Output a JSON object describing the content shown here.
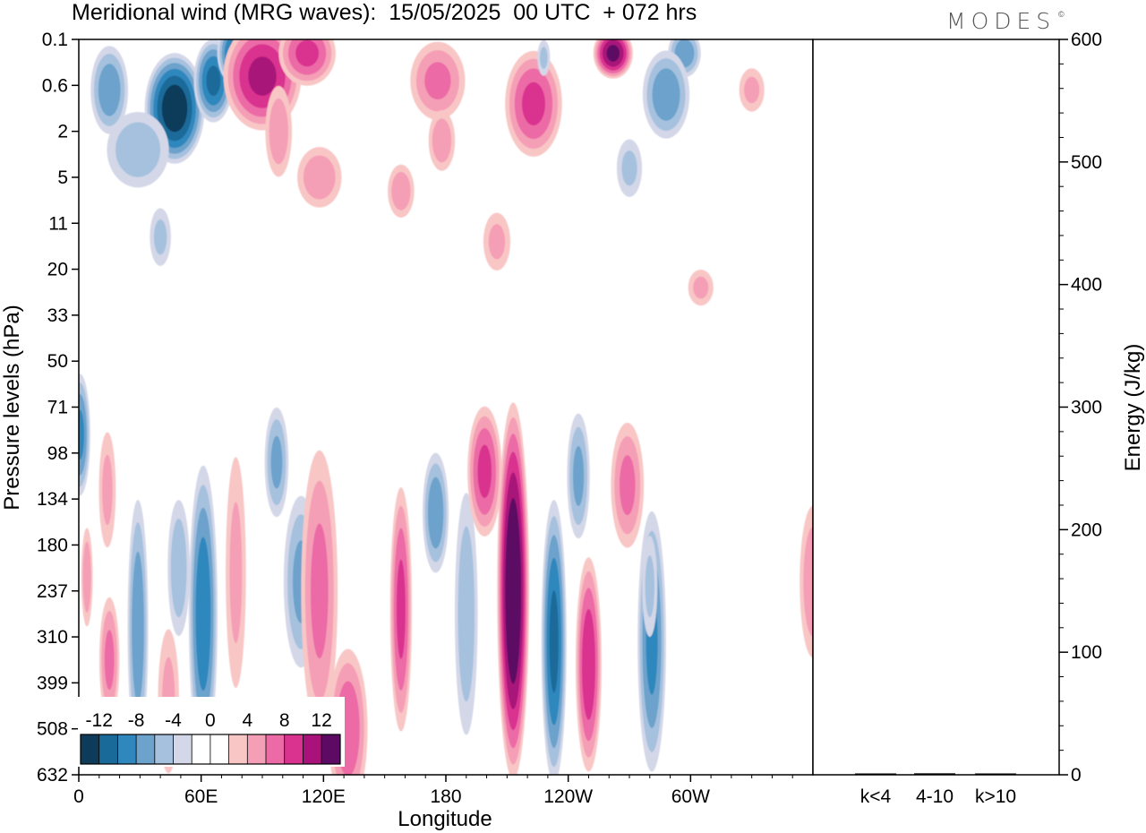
{
  "header": {
    "title": "Meridional wind (MRG waves):  15/05/2025  00 UTC  + 072 hrs",
    "brand": "MODES",
    "brand_mark": "©"
  },
  "chart_data": [
    {
      "type": "heatmap",
      "title": "Meridional wind (MRG waves):  15/05/2025  00 UTC  + 072 hrs",
      "xlabel": "Longitude",
      "ylabel": "Pressure levels (hPa)",
      "x_ticks": [
        "0",
        "60E",
        "120E",
        "180",
        "120W",
        "60W"
      ],
      "y_ticks": [
        "0.1",
        "0.6",
        "2",
        "5",
        "11",
        "20",
        "33",
        "50",
        "71",
        "98",
        "134",
        "180",
        "237",
        "310",
        "399",
        "508",
        "632"
      ],
      "colorbar": {
        "labels": [
          "-12",
          "-8",
          "-4",
          "0",
          "4",
          "8",
          "12"
        ],
        "colors": [
          "#0e3b5a",
          "#1a6a99",
          "#2f87bd",
          "#6ca2cc",
          "#a6c1de",
          "#d3d7e8",
          "#ffffff",
          "#ffffff",
          "#f9c6c6",
          "#f59fb6",
          "#ec6ba6",
          "#d9338f",
          "#a8127a",
          "#5c0a63"
        ]
      },
      "blobs": [
        {
          "lon": 0.5,
          "lev": 8.6,
          "rx": 2.2,
          "ry": 1.5,
          "v": -8
        },
        {
          "lon": 14,
          "lev": 9.8,
          "rx": 2.0,
          "ry": 1.6,
          "v": 4
        },
        {
          "lon": 4,
          "lev": 11.7,
          "rx": 1.3,
          "ry": 1.3,
          "v": 5
        },
        {
          "lon": 15,
          "lev": 13.5,
          "rx": 2.2,
          "ry": 1.6,
          "v": 6
        },
        {
          "lon": 29,
          "lev": 12.8,
          "rx": 2.2,
          "ry": 3.2,
          "v": -7
        },
        {
          "lon": 44,
          "lev": 14.4,
          "rx": 2.5,
          "ry": 2.0,
          "v": 4
        },
        {
          "lon": 49,
          "lev": 11.5,
          "rx": 2.5,
          "ry": 1.8,
          "v": -5
        },
        {
          "lon": 61,
          "lev": 12.5,
          "rx": 3.0,
          "ry": 3.6,
          "v": -9
        },
        {
          "lon": 77,
          "lev": 11.6,
          "rx": 2.4,
          "ry": 3.2,
          "v": 4
        },
        {
          "lon": 109,
          "lev": 11.8,
          "rx": 3.8,
          "ry": 2.2,
          "v": -6
        },
        {
          "lon": 97,
          "lev": 9.2,
          "rx": 2.6,
          "ry": 1.4,
          "v": -6
        },
        {
          "lon": 118,
          "lev": 12.0,
          "rx": 4.0,
          "ry": 3.6,
          "v": 6
        },
        {
          "lon": 132,
          "lev": 15.0,
          "rx": 4.2,
          "ry": 2.0,
          "v": 7
        },
        {
          "lon": 158,
          "lev": 12.4,
          "rx": 2.3,
          "ry": 3.0,
          "v": 8
        },
        {
          "lon": 175,
          "lev": 10.3,
          "rx": 2.8,
          "ry": 1.5,
          "v": -7
        },
        {
          "lon": 190,
          "lev": 12.5,
          "rx": 2.6,
          "ry": 3.2,
          "v": -5
        },
        {
          "lon": 199,
          "lev": 9.4,
          "rx": 3.6,
          "ry": 1.6,
          "v": 8
        },
        {
          "lon": 213,
          "lev": 12.0,
          "rx": 3.2,
          "ry": 4.4,
          "v": 14
        },
        {
          "lon": 233,
          "lev": 13.1,
          "rx": 2.6,
          "ry": 3.4,
          "v": -10
        },
        {
          "lon": 250,
          "lev": 13.6,
          "rx": 2.7,
          "ry": 2.6,
          "v": 9
        },
        {
          "lon": 269,
          "lev": 9.7,
          "rx": 3.6,
          "ry": 1.6,
          "v": 6
        },
        {
          "lon": 245,
          "lev": 9.5,
          "rx": 2.5,
          "ry": 1.6,
          "v": -6
        },
        {
          "lon": 281,
          "lev": 13.1,
          "rx": 3.0,
          "ry": 3.2,
          "v": -8
        },
        {
          "lon": 280,
          "lev": 11.9,
          "rx": 1.8,
          "ry": 1.4,
          "v": -4
        },
        {
          "lon": 360,
          "lev": 11.8,
          "rx": 3.0,
          "ry": 2.0,
          "v": 5
        },
        {
          "lon": 15,
          "lev": 1.1,
          "rx": 4.0,
          "ry": 1.1,
          "v": -7
        },
        {
          "lon": 47,
          "lev": 1.5,
          "rx": 6.0,
          "ry": 1.3,
          "v": -13
        },
        {
          "lon": 66,
          "lev": 0.9,
          "rx": 4.0,
          "ry": 1.0,
          "v": -10
        },
        {
          "lon": 78,
          "lev": 0.3,
          "rx": 4.2,
          "ry": 0.8,
          "v": -11
        },
        {
          "lon": 29,
          "lev": 2.4,
          "rx": 7.0,
          "ry": 1.0,
          "v": -5
        },
        {
          "lon": 90,
          "lev": 0.8,
          "rx": 8.0,
          "ry": 1.3,
          "v": 10
        },
        {
          "lon": 112,
          "lev": 0.3,
          "rx": 6.0,
          "ry": 0.8,
          "v": 8
        },
        {
          "lon": 98,
          "lev": 2.0,
          "rx": 3.0,
          "ry": 1.2,
          "v": 5
        },
        {
          "lon": 118,
          "lev": 3.0,
          "rx": 5.0,
          "ry": 0.8,
          "v": 5
        },
        {
          "lon": 176,
          "lev": 0.9,
          "rx": 6.0,
          "ry": 1.0,
          "v": 6
        },
        {
          "lon": 223,
          "lev": 1.4,
          "rx": 6.0,
          "ry": 1.3,
          "v": 8
        },
        {
          "lon": 262,
          "lev": 0.3,
          "rx": 4.0,
          "ry": 0.6,
          "v": 12
        },
        {
          "lon": 297,
          "lev": 0.3,
          "rx": 3.5,
          "ry": 0.6,
          "v": -7
        },
        {
          "lon": 288,
          "lev": 1.2,
          "rx": 5.0,
          "ry": 1.1,
          "v": -7
        },
        {
          "lon": 228,
          "lev": 0.4,
          "rx": 1.5,
          "ry": 0.5,
          "v": -4
        },
        {
          "lon": 178,
          "lev": 2.2,
          "rx": 3.0,
          "ry": 0.8,
          "v": 5
        },
        {
          "lon": 158,
          "lev": 3.3,
          "rx": 3.0,
          "ry": 0.7,
          "v": 5
        },
        {
          "lon": 270,
          "lev": 2.8,
          "rx": 3.0,
          "ry": 0.8,
          "v": -4
        },
        {
          "lon": 330,
          "lev": 1.1,
          "rx": 3.0,
          "ry": 0.6,
          "v": 4
        },
        {
          "lon": 205,
          "lev": 4.4,
          "rx": 3.2,
          "ry": 0.8,
          "v": 4
        },
        {
          "lon": 40,
          "lev": 4.3,
          "rx": 2.5,
          "ry": 0.8,
          "v": -4
        },
        {
          "lon": 305,
          "lev": 5.4,
          "rx": 3.0,
          "ry": 0.5,
          "v": 4
        }
      ]
    },
    {
      "type": "bar",
      "categories": [
        "k<4",
        "4-10",
        "k>10"
      ],
      "values": [
        0.3,
        1.2,
        0.3
      ],
      "ylabel": "Energy (J/kg)",
      "ylim": [
        0,
        600
      ],
      "y_ticks": [
        "0",
        "100",
        "200",
        "300",
        "400",
        "500",
        "600"
      ]
    }
  ]
}
